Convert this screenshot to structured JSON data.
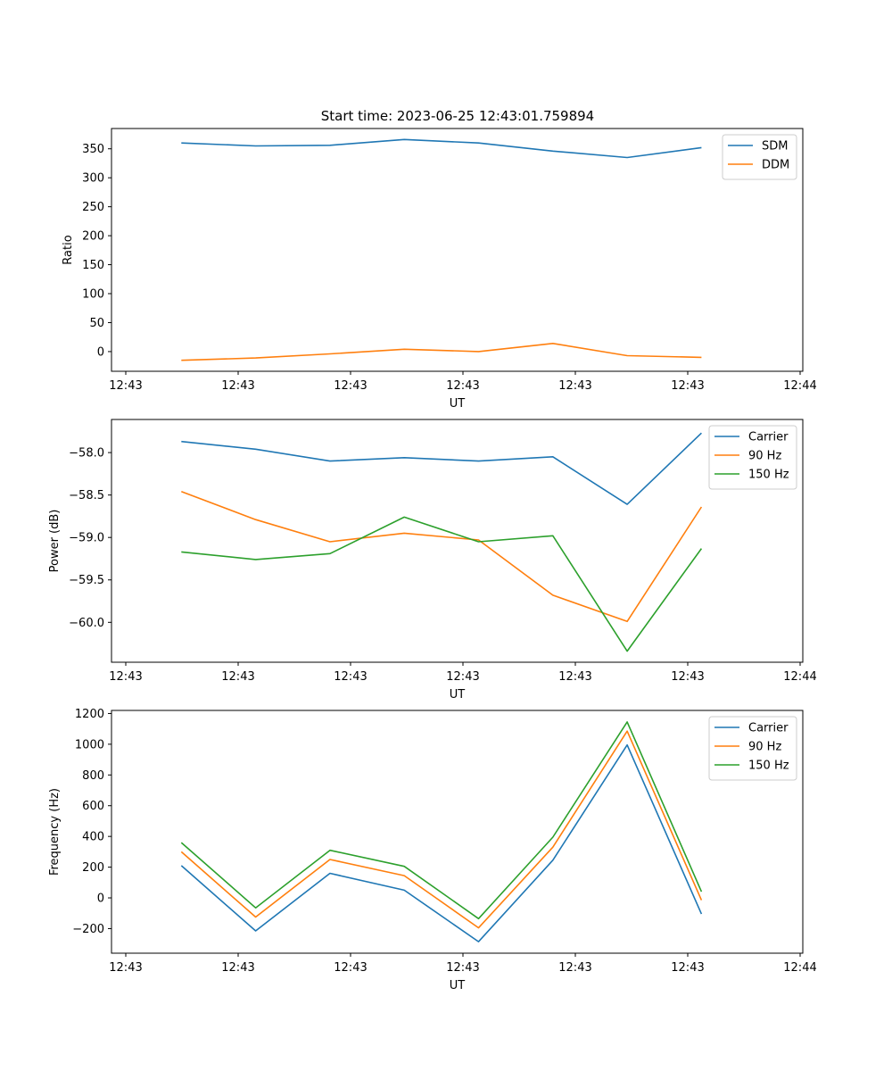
{
  "figure": {
    "title": "Start time: 2023-06-25 12:43:01.759894"
  },
  "colors": {
    "c0": "#1f77b4",
    "c1": "#ff7f0e",
    "c2": "#2ca02c"
  },
  "chart_data": [
    {
      "type": "line",
      "title": "Start time: 2023-06-25 12:43:01.759894",
      "xlabel": "UT",
      "ylabel": "Ratio",
      "x_ticks": [
        "12:43",
        "12:43",
        "12:43",
        "12:43",
        "12:43",
        "12:43",
        "12:44"
      ],
      "y_ticks": [
        0,
        50,
        100,
        150,
        200,
        250,
        300,
        350
      ],
      "ylim": [
        -34,
        385
      ],
      "x_tick_count": 7,
      "x_points": [
        0.5,
        1.16,
        1.82,
        2.48,
        3.14,
        3.8,
        4.46,
        5.12
      ],
      "xlim": [
        -0.12,
        6.02
      ],
      "legend": "top-right",
      "grid": false,
      "series": [
        {
          "name": "SDM",
          "color": "#1f77b4",
          "values": [
            360,
            355,
            356,
            366,
            360,
            346,
            335,
            352
          ]
        },
        {
          "name": "DDM",
          "color": "#ff7f0e",
          "values": [
            -15,
            -11,
            -4,
            4,
            0,
            14,
            -7,
            -10
          ]
        }
      ]
    },
    {
      "type": "line",
      "title": "",
      "xlabel": "UT",
      "ylabel": "Power (dB)",
      "x_ticks": [
        "12:43",
        "12:43",
        "12:43",
        "12:43",
        "12:43",
        "12:43",
        "12:44"
      ],
      "y_ticks": [
        -60.0,
        -59.5,
        -59.0,
        -58.5,
        -58.0
      ],
      "y_tick_labels": [
        "−60.0",
        "−59.5",
        "−59.0",
        "−58.5",
        "−58.0"
      ],
      "ylim": [
        -60.47,
        -57.61
      ],
      "x_tick_count": 7,
      "x_points": [
        0.5,
        1.16,
        1.82,
        2.48,
        3.14,
        3.8,
        4.46,
        5.12
      ],
      "xlim": [
        -0.12,
        6.02
      ],
      "legend": "top-right",
      "grid": false,
      "series": [
        {
          "name": "Carrier",
          "color": "#1f77b4",
          "values": [
            -57.87,
            -57.96,
            -58.1,
            -58.06,
            -58.1,
            -58.05,
            -58.61,
            -57.77
          ]
        },
        {
          "name": "90 Hz",
          "color": "#ff7f0e",
          "values": [
            -58.46,
            -58.79,
            -59.05,
            -58.95,
            -59.03,
            -59.68,
            -59.99,
            -58.64
          ]
        },
        {
          "name": "150 Hz",
          "color": "#2ca02c",
          "values": [
            -59.17,
            -59.26,
            -59.19,
            -58.76,
            -59.05,
            -58.98,
            -60.34,
            -59.13
          ]
        }
      ]
    },
    {
      "type": "line",
      "title": "",
      "xlabel": "UT",
      "ylabel": "Frequency (Hz)",
      "x_ticks": [
        "12:43",
        "12:43",
        "12:43",
        "12:43",
        "12:43",
        "12:43",
        "12:44"
      ],
      "y_ticks": [
        -200,
        0,
        200,
        400,
        600,
        800,
        1000,
        1200
      ],
      "y_tick_labels": [
        "−200",
        "0",
        "200",
        "400",
        "600",
        "800",
        "1000",
        "1200"
      ],
      "ylim": [
        -360,
        1220
      ],
      "x_tick_count": 7,
      "x_points": [
        0.5,
        1.16,
        1.82,
        2.48,
        3.14,
        3.8,
        4.46,
        5.12
      ],
      "xlim": [
        -0.12,
        6.02
      ],
      "legend": "top-right",
      "grid": false,
      "series": [
        {
          "name": "Carrier",
          "color": "#1f77b4",
          "values": [
            210,
            -215,
            160,
            50,
            -285,
            245,
            995,
            -105
          ]
        },
        {
          "name": "90 Hz",
          "color": "#ff7f0e",
          "values": [
            300,
            -125,
            250,
            145,
            -195,
            330,
            1085,
            -15
          ]
        },
        {
          "name": "150 Hz",
          "color": "#2ca02c",
          "values": [
            360,
            -65,
            310,
            205,
            -135,
            395,
            1145,
            40
          ]
        }
      ]
    }
  ]
}
